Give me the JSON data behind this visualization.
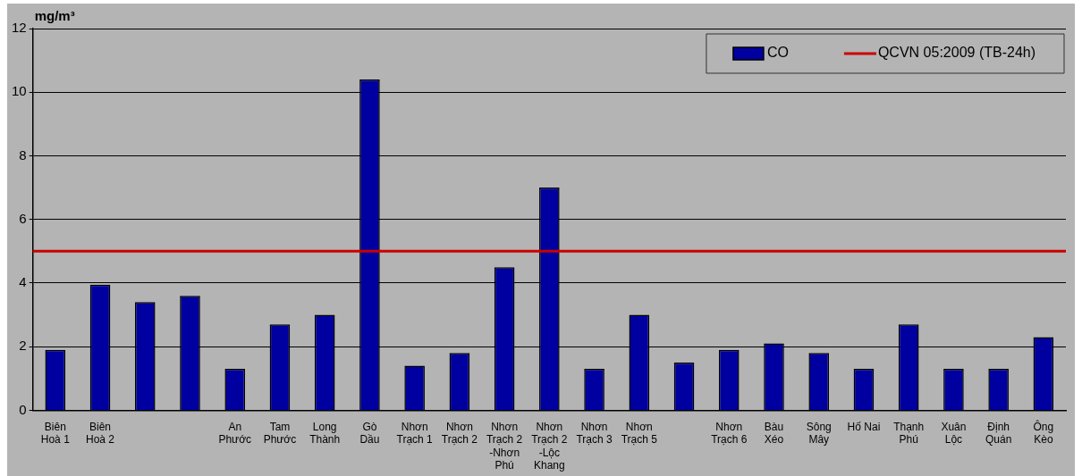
{
  "chart_data": {
    "type": "bar",
    "ylabel": "mg/m³",
    "categories": [
      "Biên\nHoà 1",
      "Biên\nHoà 2",
      null,
      null,
      "An\nPhước",
      "Tam\nPhước",
      "Long\nThành",
      "Gò\nDầu",
      "Nhơn\nTrạch 1",
      "Nhơn\nTrạch 2",
      "Nhơn\nTrạch 2\n-Nhơn\nPhú",
      "Nhơn\nTrạch 2\n-Lộc\nKhang",
      "Nhơn\nTrạch 3",
      "Nhơn\nTrạch 5",
      null,
      "Nhơn\nTrạch 6",
      "Bàu\nXéo",
      "Sông\nMây",
      "Hố Nai",
      "Thạnh\nPhú",
      "Xuân\nLộc",
      "Định\nQuán",
      "Ông\nKèo"
    ],
    "series": [
      {
        "name": "CO",
        "color": "#0000a0",
        "values": [
          1.9,
          3.95,
          3.4,
          3.6,
          1.3,
          2.7,
          3.0,
          10.4,
          1.4,
          1.8,
          4.5,
          7.0,
          1.3,
          3.0,
          1.5,
          1.9,
          2.1,
          1.8,
          1.3,
          2.7,
          1.3,
          1.3,
          2.3
        ]
      }
    ],
    "ylim": [
      0,
      12
    ],
    "yticks": [
      0,
      2,
      4,
      6,
      8,
      10,
      12
    ],
    "grid": "y",
    "legend": "top right",
    "ref_lines": [
      {
        "axis": "y",
        "value": 5,
        "label": "QCVN 05:2009 (TB-24h)",
        "color": "#cc0000"
      }
    ]
  }
}
